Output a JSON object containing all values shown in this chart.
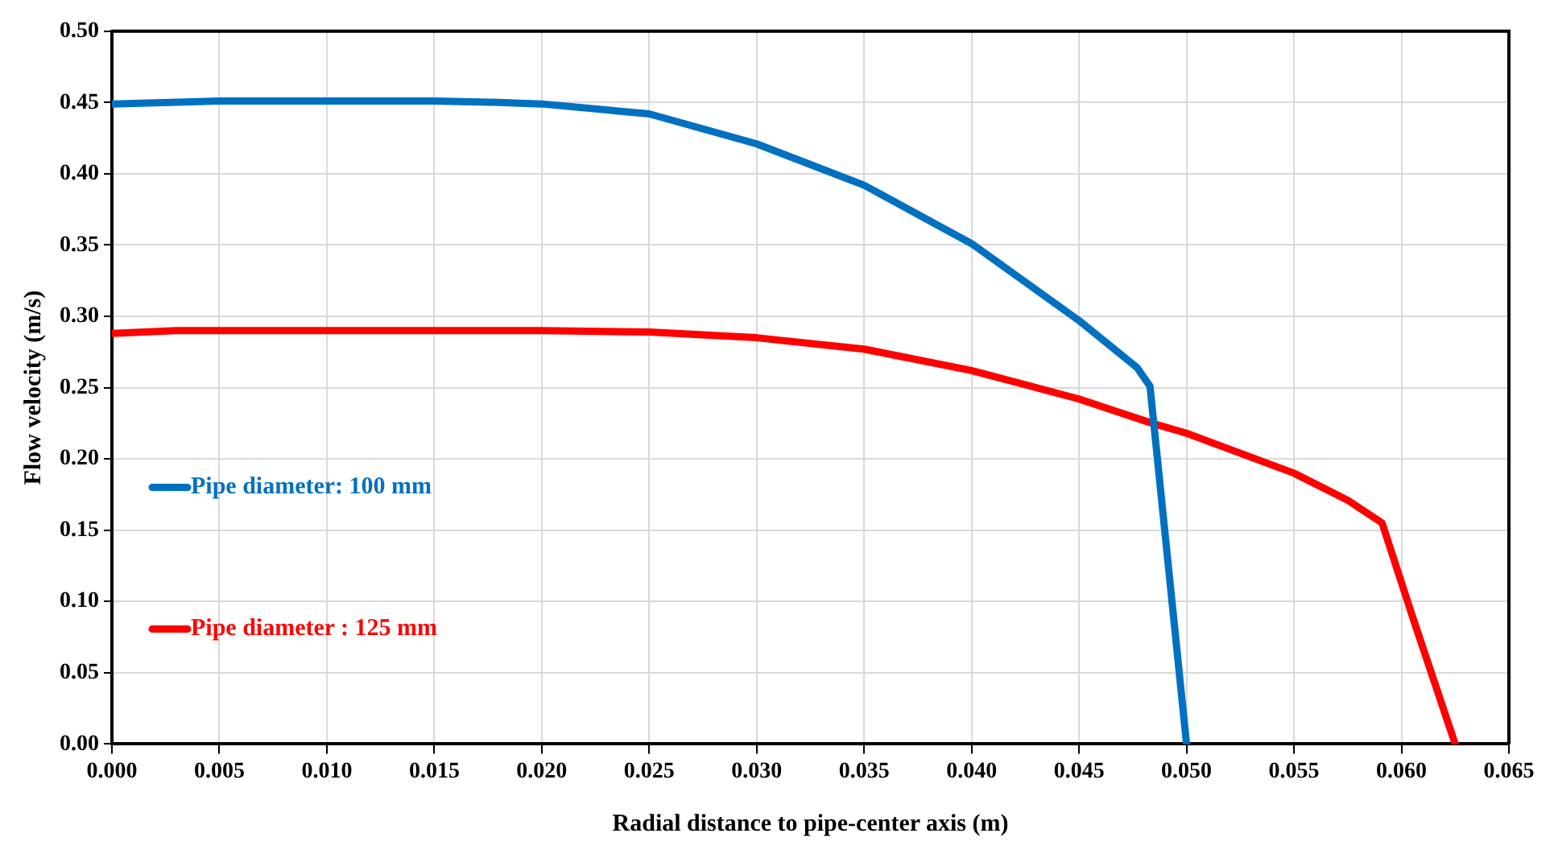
{
  "chart_data": {
    "type": "line",
    "xlabel": "Radial distance to pipe-center axis (m)",
    "ylabel": "Flow velocity (m/s)",
    "xlim": [
      0,
      0.065
    ],
    "xticks": [
      {
        "value": 0,
        "label": "0.000"
      },
      {
        "value": 0.005,
        "label": "0.005"
      },
      {
        "value": 0.01,
        "label": "0.010"
      },
      {
        "value": 0.015,
        "label": "0.015"
      },
      {
        "value": 0.02,
        "label": "0.020"
      },
      {
        "value": 0.025,
        "label": "0.025"
      },
      {
        "value": 0.03,
        "label": "0.030"
      },
      {
        "value": 0.035,
        "label": "0.035"
      },
      {
        "value": 0.04,
        "label": "0.040"
      },
      {
        "value": 0.045,
        "label": "0.045"
      },
      {
        "value": 0.05,
        "label": "0.050"
      },
      {
        "value": 0.055,
        "label": "0.055"
      },
      {
        "value": 0.06,
        "label": "0.060"
      },
      {
        "value": 0.065,
        "label": "0.065"
      }
    ],
    "ylim": [
      0,
      0.5
    ],
    "yticks": [
      {
        "value": 0,
        "label": "0.00"
      },
      {
        "value": 0.05,
        "label": "0.05"
      },
      {
        "value": 0.1,
        "label": "0.10"
      },
      {
        "value": 0.15,
        "label": "0.15"
      },
      {
        "value": 0.2,
        "label": "0.20"
      },
      {
        "value": 0.25,
        "label": "0.25"
      },
      {
        "value": 0.3,
        "label": "0.30"
      },
      {
        "value": 0.35,
        "label": "0.35"
      },
      {
        "value": 0.4,
        "label": "0.40"
      },
      {
        "value": 0.45,
        "label": "0.45"
      },
      {
        "value": 0.5,
        "label": "0.50"
      }
    ],
    "grid": true,
    "legend": "left",
    "marker": "none",
    "line_style": "solid",
    "series": [
      {
        "name": "Pipe diameter: 100 mm",
        "color": "#0070c0",
        "x": [
          0,
          0.005,
          0.01,
          0.015,
          0.018,
          0.02,
          0.025,
          0.03,
          0.035,
          0.04,
          0.045,
          0.0477,
          0.0483,
          0.05
        ],
        "values": [
          0.449,
          0.451,
          0.451,
          0.451,
          0.45,
          0.449,
          0.442,
          0.421,
          0.392,
          0.351,
          0.297,
          0.264,
          0.251,
          0
        ]
      },
      {
        "name": "Pipe diameter : 125 mm",
        "color": "#ff0000",
        "x": [
          0,
          0.003,
          0.01,
          0.02,
          0.025,
          0.03,
          0.035,
          0.04,
          0.045,
          0.0484,
          0.05,
          0.055,
          0.0575,
          0.0591,
          0.0605,
          0.0625
        ],
        "values": [
          0.288,
          0.29,
          0.29,
          0.29,
          0.289,
          0.285,
          0.277,
          0.262,
          0.242,
          0.225,
          0.218,
          0.19,
          0.171,
          0.155,
          0.09,
          0
        ]
      }
    ]
  }
}
